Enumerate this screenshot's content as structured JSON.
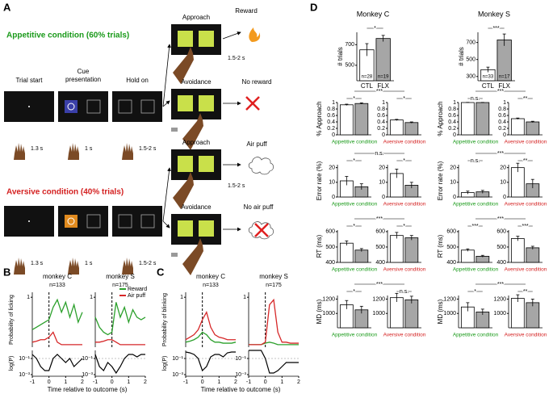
{
  "panel_a": {
    "label": "A",
    "appetitive": "Appetitive condition (60% trials)",
    "aversive": "Aversive condition (40% trials)",
    "trial_start": "Trial start",
    "cue_line1": "Cue",
    "cue_line2": "presentation",
    "hold_on": "Hold on",
    "durations": [
      "1.3 s",
      "1 s",
      "1.5-2 s"
    ],
    "approach": "Approach",
    "avoidance": "Avoidance",
    "reward": "Reward",
    "no_reward": "No reward",
    "air_puff": "Air puff",
    "no_air_puff": "No air puff"
  },
  "chart_data": [
    {
      "type": "line",
      "label": "B",
      "ylabel": "Probability of licking",
      "y2label": "log(P)",
      "xlabel": "Time relative to outcome (s)",
      "legend": true,
      "x": [
        -1,
        -0.75,
        -0.5,
        -0.25,
        0,
        0.25,
        0.5,
        0.75,
        1,
        1.25,
        1.5,
        1.75,
        2
      ],
      "xlim": [
        -1,
        2
      ],
      "xticks": [
        -1,
        0,
        1,
        2
      ],
      "ylim": [
        0,
        1.1
      ],
      "yticks": [
        1
      ],
      "y2lim": [
        -3.2,
        0
      ],
      "y2ticks": [
        {
          "value": -1,
          "label": "10⁻¹"
        },
        {
          "value": -3,
          "label": "10⁻³"
        }
      ],
      "subplots": [
        {
          "title": "monkey C",
          "n": "n=133",
          "series": [
            {
              "name": "Reward",
              "color": "#2ca02c",
              "values": [
                0.35,
                0.4,
                0.45,
                0.5,
                0.55,
                0.8,
                0.95,
                0.7,
                0.9,
                0.6,
                0.85,
                0.5,
                0.7
              ]
            },
            {
              "name": "Air puff",
              "color": "#d62728",
              "values": [
                0.1,
                0.12,
                0.15,
                0.15,
                0.2,
                0.3,
                0.1,
                0.05,
                0.05,
                0.05,
                0.05,
                0.05,
                0.05
              ]
            }
          ],
          "logp": [
            -0.5,
            -1,
            -2,
            -2.5,
            -2.5,
            -1,
            -0.5,
            -1,
            -1.5,
            -1,
            -2,
            -1.5,
            -1
          ]
        },
        {
          "title": "monkey S",
          "n": "n=175",
          "series": [
            {
              "name": "Reward",
              "color": "#2ca02c",
              "values": [
                0.6,
                0.4,
                0.3,
                0.25,
                0.3,
                0.9,
                0.6,
                0.8,
                0.5,
                0.75,
                0.6,
                0.55,
                0.6
              ]
            },
            {
              "name": "Air puff",
              "color": "#d62728",
              "values": [
                0.1,
                0.1,
                0.12,
                0.15,
                0.15,
                0.1,
                0.05,
                0.05,
                0.05,
                0.05,
                0.05,
                0.05,
                0.05
              ]
            }
          ],
          "logp": [
            -0.5,
            -2,
            -2.5,
            -1.5,
            -2,
            -2.8,
            -2,
            -1,
            -0.5,
            -0.5,
            -0.8,
            -0.5,
            -0.5
          ]
        }
      ]
    },
    {
      "type": "line",
      "label": "C",
      "ylabel": "Probability of blinking",
      "y2label": "log(P)",
      "xlabel": "Time relative to outcome (s)",
      "legend": false,
      "x": [
        -1,
        -0.75,
        -0.5,
        -0.25,
        0,
        0.25,
        0.5,
        0.75,
        1,
        1.25,
        1.5,
        1.75,
        2
      ],
      "xlim": [
        -1,
        2
      ],
      "xticks": [
        -1,
        0,
        1,
        2
      ],
      "ylim": [
        0,
        1.1
      ],
      "yticks": [
        1
      ],
      "y2lim": [
        -3.2,
        0
      ],
      "y2ticks": [
        {
          "value": -1,
          "label": "10⁻¹"
        },
        {
          "value": -3,
          "label": "10⁻³"
        }
      ],
      "subplots": [
        {
          "title": "monkey C",
          "n": "n=133",
          "series": [
            {
              "name": "Reward",
              "color": "#2ca02c",
              "values": [
                0.1,
                0.12,
                0.15,
                0.2,
                0.3,
                0.25,
                0.15,
                0.1,
                0.1,
                0.08,
                0.08,
                0.08,
                0.1
              ]
            },
            {
              "name": "Air puff",
              "color": "#d62728",
              "values": [
                0.15,
                0.2,
                0.25,
                0.35,
                0.55,
                0.7,
                0.4,
                0.25,
                0.2,
                0.18,
                0.15,
                0.15,
                0.15
              ]
            }
          ],
          "logp": [
            -0.2,
            -0.3,
            -0.5,
            -1,
            -2.5,
            -2,
            -0.8,
            -0.5,
            -0.5,
            -0.8,
            -0.3,
            -0.2,
            -0.2
          ]
        },
        {
          "title": "monkey S",
          "n": "n=175",
          "series": [
            {
              "name": "Reward",
              "color": "#2ca02c",
              "values": [
                0.05,
                0.05,
                0.05,
                0.05,
                0.08,
                0.1,
                0.08,
                0.05,
                0.05,
                0.05,
                0.05,
                0.05,
                0.05
              ]
            },
            {
              "name": "Air puff",
              "color": "#d62728",
              "values": [
                0.05,
                0.05,
                0.05,
                0.05,
                0.1,
                0.85,
                0.95,
                0.3,
                0.1,
                0.1,
                0.08,
                0.08,
                0.08
              ]
            }
          ],
          "logp": [
            0,
            0,
            0,
            0,
            -1,
            -2.8,
            -2.8,
            -2.5,
            -2,
            -1.5,
            -1.5,
            -1.5,
            -1.5
          ]
        }
      ]
    },
    {
      "type": "bar-grid",
      "label": "D",
      "colors": [
        "#ffffff",
        "#a6a6a6"
      ],
      "columns": [
        {
          "monkey": "Monkey C",
          "trials": {
            "ylabel": "# trials",
            "categories": [
              "CTL",
              "FLX"
            ],
            "values": [
              650,
              760
            ],
            "errors": [
              60,
              30
            ],
            "n_labels": [
              "n=28",
              "n=19"
            ],
            "ylim": [
              350,
              820
            ],
            "yticks": [
              500,
              700
            ],
            "sig": "*"
          },
          "rows": [
            {
              "ylabel": "% Approach",
              "sig_across": "***",
              "panels": [
                {
                  "xlabel": "Appetitive condition",
                  "color": "#1a9a1a",
                  "ylim": [
                    0,
                    1
                  ],
                  "yticks": [
                    0,
                    0.2,
                    0.4,
                    0.6,
                    0.8,
                    1
                  ],
                  "values": [
                    0.93,
                    0.97
                  ],
                  "errors": [
                    0.02,
                    0.02
                  ],
                  "sig": "*"
                },
                {
                  "xlabel": "Aversive condition",
                  "color": "#d42020",
                  "ylim": [
                    0,
                    1
                  ],
                  "yticks": [
                    0,
                    0.2,
                    0.4,
                    0.6,
                    0.8,
                    1
                  ],
                  "values": [
                    0.46,
                    0.38
                  ],
                  "errors": [
                    0.02,
                    0.02
                  ],
                  "sig": "*"
                }
              ]
            },
            {
              "ylabel": "Error rate (%)",
              "sig_across": "n.s.",
              "panels": [
                {
                  "xlabel": "Appetitive condition",
                  "color": "#1a9a1a",
                  "ylim": [
                    0,
                    22
                  ],
                  "yticks": [
                    0,
                    10,
                    20
                  ],
                  "values": [
                    11,
                    7
                  ],
                  "errors": [
                    3,
                    2
                  ],
                  "sig": "*"
                },
                {
                  "xlabel": "Aversive condition",
                  "color": "#d42020",
                  "ylim": [
                    0,
                    22
                  ],
                  "yticks": [
                    0,
                    10,
                    20
                  ],
                  "values": [
                    16,
                    8
                  ],
                  "errors": [
                    3,
                    2
                  ],
                  "sig": "*"
                }
              ]
            },
            {
              "ylabel": "RT (ms)",
              "sig_across": "***",
              "panels": [
                {
                  "xlabel": "Appetitive condition",
                  "color": "#1a9a1a",
                  "ylim": [
                    400,
                    610
                  ],
                  "yticks": [
                    400,
                    500,
                    600
                  ],
                  "values": [
                    525,
                    480
                  ],
                  "errors": [
                    15,
                    10
                  ],
                  "sig": "*"
                },
                {
                  "xlabel": "Aversive condition",
                  "color": "#d42020",
                  "ylim": [
                    400,
                    610
                  ],
                  "yticks": [
                    400,
                    500,
                    600
                  ],
                  "values": [
                    575,
                    560
                  ],
                  "errors": [
                    20,
                    15
                  ],
                  "sig": "*"
                }
              ]
            },
            {
              "ylabel": "MD (ms)",
              "sig_across": "***",
              "panels": [
                {
                  "xlabel": "Appetitive condition",
                  "color": "#1a9a1a",
                  "ylim": [
                    800,
                    1250
                  ],
                  "yticks": [
                    1000,
                    1200
                  ],
                  "values": [
                    1120,
                    1050
                  ],
                  "errors": [
                    60,
                    50
                  ],
                  "sig": "*"
                },
                {
                  "xlabel": "Aversive condition",
                  "color": "#d42020",
                  "ylim": [
                    800,
                    1250
                  ],
                  "yticks": [
                    1000,
                    1200
                  ],
                  "values": [
                    1220,
                    1190
                  ],
                  "errors": [
                    60,
                    50
                  ],
                  "sig": "n.s."
                }
              ]
            }
          ]
        },
        {
          "monkey": "Monkey S",
          "trials": {
            "ylabel": "# trials",
            "categories": [
              "CTL",
              "FLX"
            ],
            "values": [
              380,
              730
            ],
            "errors": [
              30,
              70
            ],
            "n_labels": [
              "n=33",
              "n=17"
            ],
            "ylim": [
              250,
              820
            ],
            "yticks": [
              300,
              500,
              700
            ],
            "sig": "***"
          },
          "rows": [
            {
              "ylabel": "% Approach",
              "sig_across": "***",
              "panels": [
                {
                  "xlabel": "Appetitive condition",
                  "color": "#1a9a1a",
                  "ylim": [
                    0,
                    1
                  ],
                  "yticks": [
                    0,
                    0.2,
                    0.4,
                    0.6,
                    0.8,
                    1
                  ],
                  "values": [
                    1,
                    1
                  ],
                  "errors": [
                    0.005,
                    0.005
                  ],
                  "sig": "n.s."
                },
                {
                  "xlabel": "Aversive condition",
                  "color": "#d42020",
                  "ylim": [
                    0,
                    1
                  ],
                  "yticks": [
                    0,
                    0.2,
                    0.4,
                    0.6,
                    0.8,
                    1
                  ],
                  "values": [
                    0.5,
                    0.4
                  ],
                  "errors": [
                    0.02,
                    0.02
                  ],
                  "sig": "**"
                }
              ]
            },
            {
              "ylabel": "Error rate (%)",
              "sig_across": "***",
              "panels": [
                {
                  "xlabel": "Appetitive condition",
                  "color": "#1a9a1a",
                  "ylim": [
                    0,
                    22
                  ],
                  "yticks": [
                    0,
                    10,
                    20
                  ],
                  "values": [
                    3,
                    3.5
                  ],
                  "errors": [
                    1,
                    1
                  ],
                  "sig": "n.s."
                },
                {
                  "xlabel": "Aversive condition",
                  "color": "#d42020",
                  "ylim": [
                    0,
                    22
                  ],
                  "yticks": [
                    0,
                    10,
                    20
                  ],
                  "values": [
                    20,
                    9
                  ],
                  "errors": [
                    3,
                    3
                  ],
                  "sig": "**"
                }
              ]
            },
            {
              "ylabel": "RT (ms)",
              "sig_across": "***",
              "panels": [
                {
                  "xlabel": "Appetitive condition",
                  "color": "#1a9a1a",
                  "ylim": [
                    400,
                    610
                  ],
                  "yticks": [
                    400,
                    500,
                    600
                  ],
                  "values": [
                    480,
                    440
                  ],
                  "errors": [
                    8,
                    6
                  ],
                  "sig": "***"
                },
                {
                  "xlabel": "Aversive condition",
                  "color": "#d42020",
                  "ylim": [
                    400,
                    610
                  ],
                  "yticks": [
                    400,
                    500,
                    600
                  ],
                  "values": [
                    555,
                    495
                  ],
                  "errors": [
                    15,
                    10
                  ],
                  "sig": "***"
                }
              ]
            },
            {
              "ylabel": "MD (ms)",
              "sig_across": "***",
              "panels": [
                {
                  "xlabel": "Appetitive condition",
                  "color": "#1a9a1a",
                  "ylim": [
                    800,
                    1250
                  ],
                  "yticks": [
                    1000,
                    1200
                  ],
                  "values": [
                    1090,
                    1020
                  ],
                  "errors": [
                    60,
                    40
                  ],
                  "sig": "*"
                },
                {
                  "xlabel": "Aversive condition",
                  "color": "#d42020",
                  "ylim": [
                    800,
                    1250
                  ],
                  "yticks": [
                    1000,
                    1200
                  ],
                  "values": [
                    1210,
                    1150
                  ],
                  "errors": [
                    50,
                    50
                  ],
                  "sig": "**"
                }
              ]
            }
          ]
        }
      ]
    }
  ]
}
